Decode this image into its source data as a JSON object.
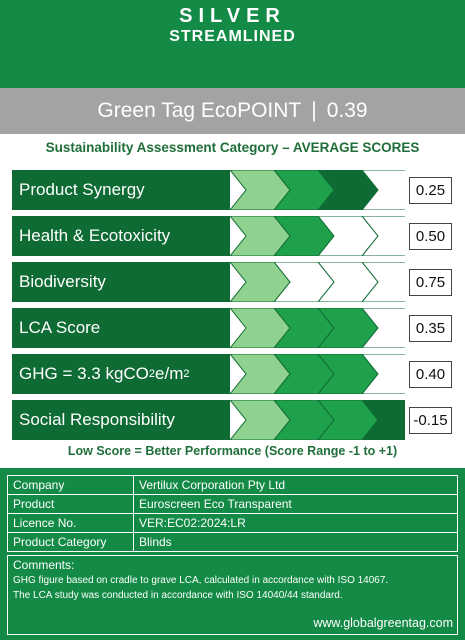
{
  "header": {
    "tier": "SILVER",
    "type": "STREAMLINED"
  },
  "ecopoint": {
    "label": "Green Tag EcoPOINT",
    "separator": "|",
    "value": "0.39"
  },
  "category_title": "Sustainability Assessment Category – AVERAGE SCORES",
  "colors": {
    "dark": "#0e6b33",
    "mid": "#1fa14c",
    "light": "#8fd18e",
    "white": "#ffffff",
    "header": "#138a45",
    "band": "#a3a3a3",
    "title_text": "#1e6f39"
  },
  "rows": [
    {
      "label": "Product Synergy",
      "score": "0.25",
      "chevrons": [
        "light",
        "mid",
        "dark",
        "white"
      ]
    },
    {
      "label": "Health & Ecotoxicity",
      "score": "0.50",
      "chevrons": [
        "light",
        "mid",
        "white",
        "white"
      ]
    },
    {
      "label": "Biodiversity",
      "score": "0.75",
      "chevrons": [
        "light",
        "white",
        "white",
        "white"
      ]
    },
    {
      "label": "LCA Score",
      "score": "0.35",
      "chevrons": [
        "light",
        "mid",
        "mid",
        "white"
      ]
    },
    {
      "label_parts": {
        "pre": "GHG = 3.3 kgCO",
        "sub": "2",
        "mid": "e/m",
        "sup": "2"
      },
      "score": "0.40",
      "chevrons": [
        "light",
        "mid",
        "mid",
        "white"
      ]
    },
    {
      "label": "Social Responsibility",
      "score": "-0.15",
      "chevrons": [
        "light",
        "mid",
        "mid",
        "dark"
      ]
    }
  ],
  "footnote": "Low Score = Better Performance (Score Range -1 to +1)",
  "info": {
    "rows": [
      {
        "key": "Company",
        "value": "Vertilux Corporation Pty Ltd"
      },
      {
        "key": "Product",
        "value": "Euroscreen  Eco  Transparent"
      },
      {
        "key": "Licence No.",
        "value": "VER:EC02:2024:LR"
      },
      {
        "key": "Product Category",
        "value": "Blinds"
      }
    ],
    "comments_label": "Comments:",
    "comments_line1": "GHG figure based on cradle to grave LCA, calculated in accordance with ISO 14067.",
    "comments_line2": "The LCA study was conducted in accordance with ISO 14040/44 standard.",
    "website": "www.globalgreentag.com"
  }
}
